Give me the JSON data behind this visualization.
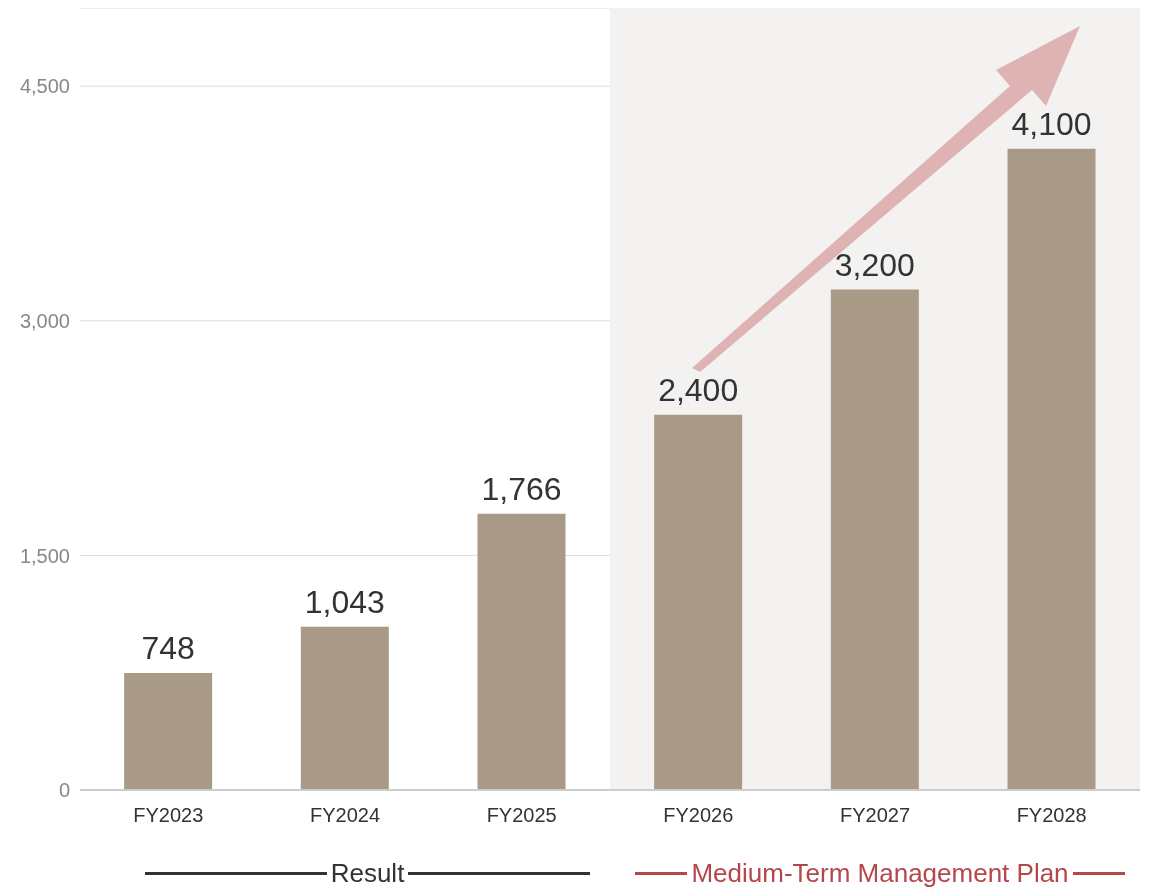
{
  "chart_data": {
    "type": "bar",
    "categories": [
      "FY2023",
      "FY2024",
      "FY2025",
      "FY2026",
      "FY2027",
      "FY2028"
    ],
    "values": [
      748,
      1043,
      1766,
      2400,
      3200,
      4100
    ],
    "color": "#a89a86",
    "ylim": [
      0,
      5000
    ],
    "yticks": [
      0,
      {
        "value": 1500,
        "label": "1,500"
      },
      {
        "value": 3000,
        "label": "3,000"
      },
      {
        "value": 4500,
        "label": "4,500"
      }
    ],
    "grid": "y",
    "value_labels": [
      "748",
      "1,043",
      "1,766",
      "2,400",
      "3,200",
      "4,100"
    ],
    "bands": [
      {
        "axis": "x",
        "from": "FY2026",
        "to": "FY2028",
        "color": "#f4f2f0"
      }
    ],
    "annotations": [
      "Result",
      "Medium-Term Management Plan"
    ]
  }
}
